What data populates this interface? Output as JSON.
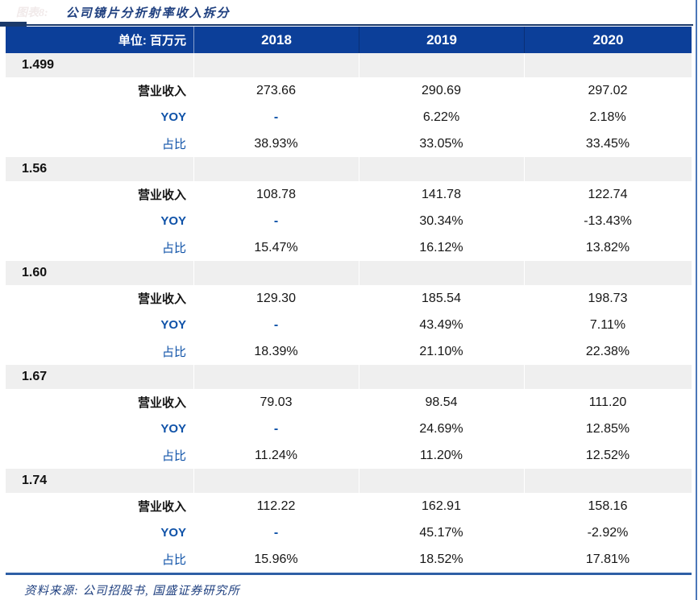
{
  "figure": {
    "faint_label": "图表8:",
    "title": "公司镜片分折射率收入拆分"
  },
  "table": {
    "unit_label": "单位: 百万元",
    "years": [
      "2018",
      "2019",
      "2020"
    ],
    "row_labels": {
      "revenue": "营业收入",
      "yoy": "YOY",
      "share": "占比"
    },
    "groups": [
      {
        "index": "1.499",
        "revenue": [
          "273.66",
          "290.69",
          "297.02"
        ],
        "yoy": [
          "-",
          "6.22%",
          "2.18%"
        ],
        "share": [
          "38.93%",
          "33.05%",
          "33.45%"
        ]
      },
      {
        "index": "1.56",
        "revenue": [
          "108.78",
          "141.78",
          "122.74"
        ],
        "yoy": [
          "-",
          "30.34%",
          "-13.43%"
        ],
        "share": [
          "15.47%",
          "16.12%",
          "13.82%"
        ]
      },
      {
        "index": "1.60",
        "revenue": [
          "129.30",
          "185.54",
          "198.73"
        ],
        "yoy": [
          "-",
          "43.49%",
          "7.11%"
        ],
        "share": [
          "18.39%",
          "21.10%",
          "22.38%"
        ]
      },
      {
        "index": "1.67",
        "revenue": [
          "79.03",
          "98.54",
          "111.20"
        ],
        "yoy": [
          "-",
          "24.69%",
          "12.85%"
        ],
        "share": [
          "11.24%",
          "11.20%",
          "12.52%"
        ]
      },
      {
        "index": "1.74",
        "revenue": [
          "112.22",
          "162.91",
          "158.16"
        ],
        "yoy": [
          "-",
          "45.17%",
          "-2.92%"
        ],
        "share": [
          "15.96%",
          "18.52%",
          "17.81%"
        ]
      }
    ]
  },
  "footer": {
    "source": "资料来源: 公司招股书, 国盛证券研究所"
  },
  "colors": {
    "header_bg": "#0c3f99",
    "band_bg": "#efefef",
    "accent_blue": "#0f52a8",
    "title_navy": "#1e3f7f",
    "rule_blue": "#2e5fa5",
    "dark_rule": "#1b3a6b"
  }
}
